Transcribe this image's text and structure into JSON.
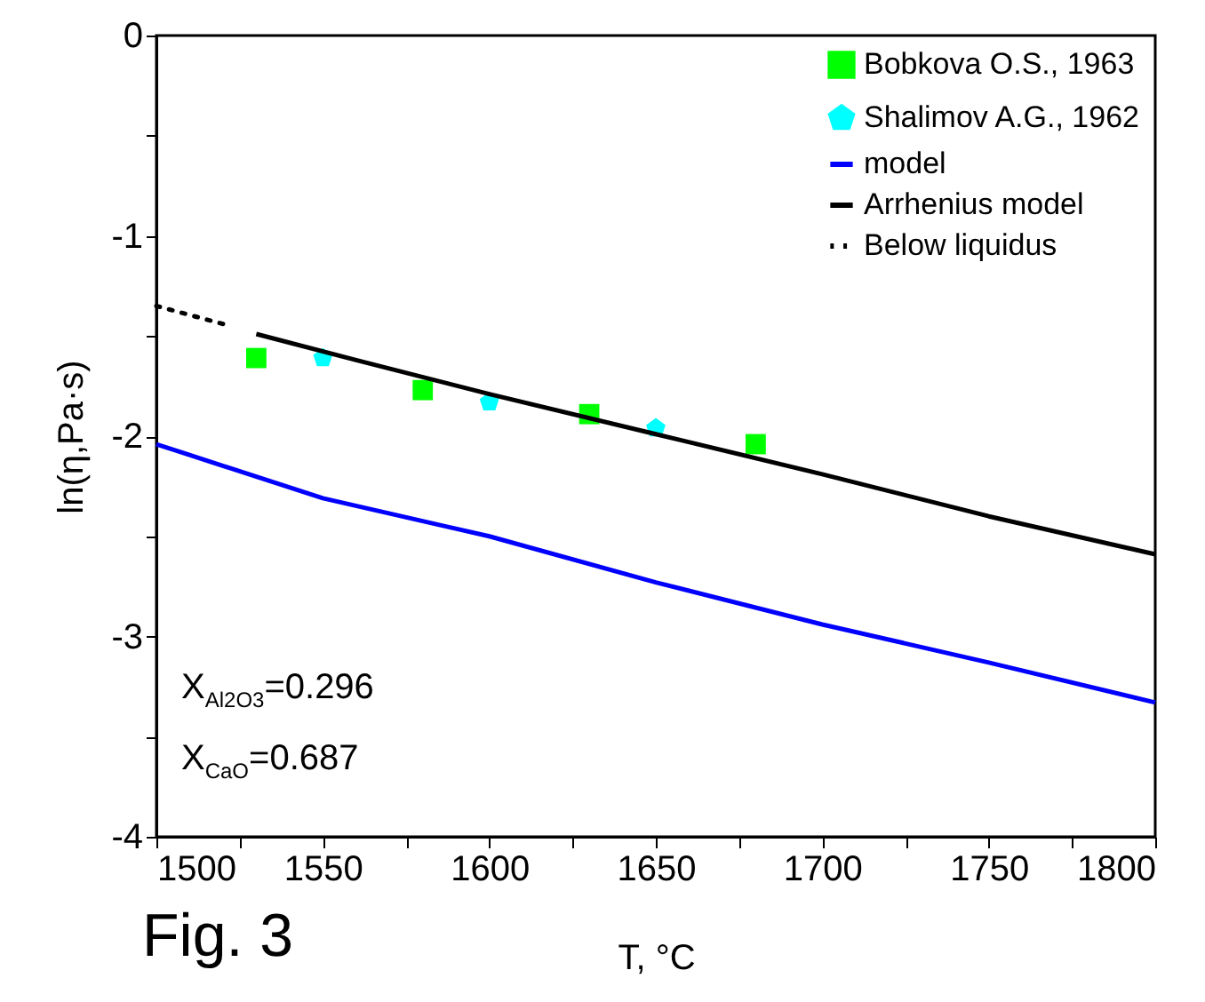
{
  "chart_data": {
    "type": "scatter",
    "xlabel": "T, °C",
    "ylabel": "ln(η,Pa·s)",
    "xlim": [
      1500,
      1800
    ],
    "ylim": [
      -4,
      0
    ],
    "xticks": [
      1500,
      {
        "value": 1525,
        "label": null
      },
      1550,
      {
        "value": 1575,
        "label": null
      },
      1600,
      {
        "value": 1625,
        "label": null
      },
      1650,
      {
        "value": 1675,
        "label": null
      },
      1700,
      {
        "value": 1725,
        "label": null
      },
      1750,
      {
        "value": 1775,
        "label": null
      },
      1800
    ],
    "yticks": [
      -4,
      {
        "value": -3.5,
        "label": null
      },
      -3,
      {
        "value": -2.5,
        "label": null
      },
      -2,
      {
        "value": -1.5,
        "label": null
      },
      -1,
      {
        "value": -0.5,
        "label": null
      },
      0
    ],
    "grid": false,
    "legend": "top right",
    "series": [
      {
        "name": "Bobkova O.S., 1963",
        "marker": "square",
        "color": "#00ff00",
        "x": [
          1530,
          1580,
          1630,
          1680
        ],
        "values": [
          -1.61,
          -1.77,
          -1.89,
          -2.04
        ]
      },
      {
        "name": "Shalimov A.G., 1962",
        "color": "#00ffff",
        "x": [
          1550,
          1600,
          1650
        ],
        "values": [
          -1.61,
          -1.83,
          -1.96
        ]
      },
      {
        "name": "model",
        "type": "line",
        "line_style": "solid",
        "color": "#0000ff",
        "x": [
          1500,
          1550,
          1600,
          1650,
          1700,
          1750,
          1800
        ],
        "values": [
          -2.04,
          -2.31,
          -2.5,
          -2.73,
          -2.94,
          -3.13,
          -3.33
        ]
      },
      {
        "name": "Arrhenius model",
        "type": "line",
        "line_style": "solid",
        "color": "#000000",
        "x": [
          1530,
          1560,
          1600,
          1650,
          1700,
          1750,
          1800
        ],
        "values": [
          -1.49,
          -1.62,
          -1.79,
          -1.99,
          -2.19,
          -2.4,
          -2.59
        ]
      },
      {
        "name": "Below liquidus",
        "type": "line",
        "line_style": "dotted",
        "color": "#000000",
        "x": [
          1500,
          1520
        ],
        "values": [
          -1.35,
          -1.44
        ]
      }
    ],
    "annotations": [
      "X$_{Al2O3}$=0.296",
      "X$_{CaO}$=0.687",
      "Fig. 3"
    ]
  }
}
